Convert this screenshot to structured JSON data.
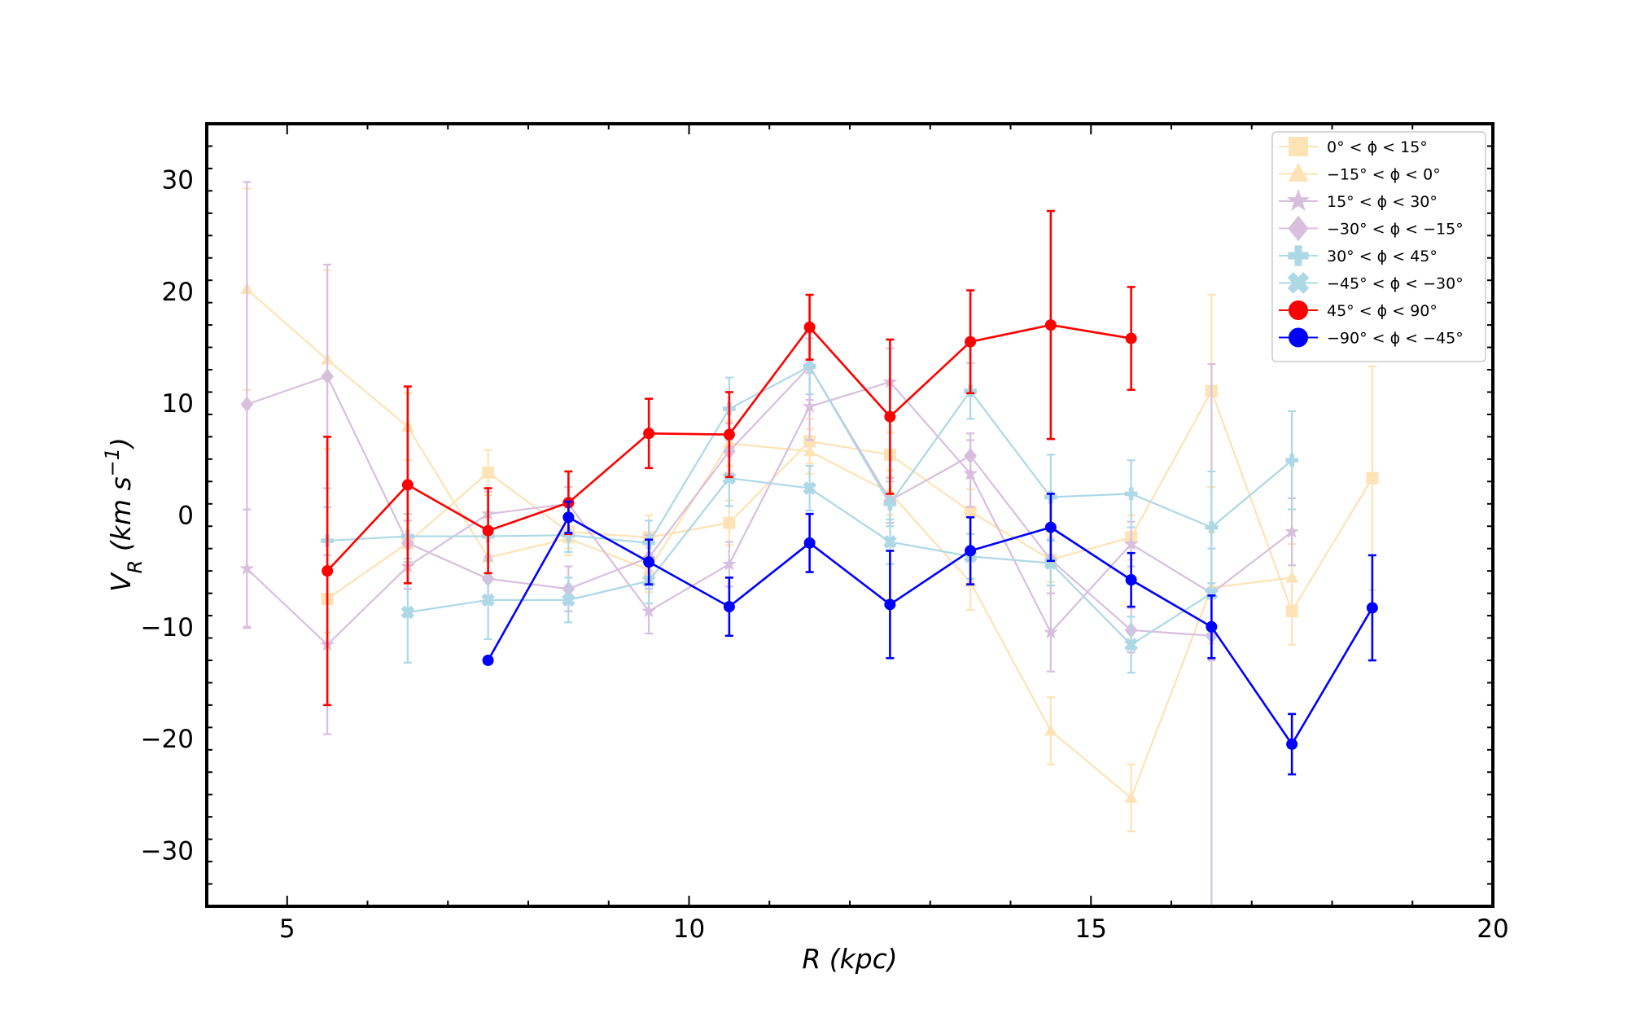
{
  "chart_data": {
    "type": "line",
    "xlabel": "R (kpc)",
    "ylabel": "V_R (km s^-1)",
    "xlim": [
      4,
      20
    ],
    "ylim": [
      -35,
      35
    ],
    "xticks": [
      5,
      10,
      15,
      20
    ],
    "xtick_labels": [
      "5",
      "10",
      "15",
      "20"
    ],
    "yticks": [
      -30,
      -20,
      -10,
      0,
      10,
      20,
      30
    ],
    "ytick_labels": [
      "−30",
      "−20",
      "−10",
      "0",
      "10",
      "20",
      "30"
    ],
    "legend_position": "top-right",
    "grid": false,
    "series": [
      {
        "name": "0° < ϕ < 15°",
        "color": "#FDE3B5",
        "marker": "square",
        "x": [
          5.5,
          6.5,
          7.5,
          8.5,
          9.5,
          10.5,
          11.5,
          12.5,
          13.5,
          14.5,
          15.5,
          16.5,
          17.5,
          18.5
        ],
        "y": [
          -7.5,
          -2.5,
          3.8,
          -1.5,
          -2.0,
          -0.7,
          6.6,
          5.4,
          0.3,
          -4.0,
          -2.0,
          11.1,
          -8.6,
          3.3
        ],
        "err": [
          3.0,
          2.0,
          2.0,
          1.5,
          2.0,
          2.0,
          2.0,
          2.0,
          2.0,
          2.0,
          2.0,
          8.6,
          3.0,
          10.0
        ]
      },
      {
        "name": "−15° < ϕ < 0°",
        "color": "#FDE3B5",
        "marker": "triangle",
        "x": [
          4.5,
          5.5,
          6.5,
          7.5,
          8.5,
          9.5,
          10.5,
          11.5,
          12.5,
          13.5,
          14.5,
          15.5,
          16.5,
          17.5
        ],
        "y": [
          20.2,
          13.9,
          7.9,
          -3.8,
          -2.1,
          -4.9,
          6.4,
          5.7,
          2.0,
          -6.0,
          -19.3,
          -25.3,
          -6.5,
          -5.6
        ],
        "err": [
          9.0,
          8.0,
          3.0,
          2.0,
          1.5,
          2.0,
          2.0,
          2.0,
          2.0,
          2.5,
          3.0,
          3.0,
          5.0,
          3.0
        ]
      },
      {
        "name": "15° < ϕ < 30°",
        "color": "#D8BFDE",
        "marker": "star",
        "x": [
          4.5,
          5.5,
          6.5,
          7.5,
          8.5,
          9.5,
          10.5,
          11.5,
          12.5,
          13.5,
          14.5,
          15.5,
          16.5,
          17.5
        ],
        "y": [
          -4.8,
          -11.6,
          -4.6,
          0.1,
          1.0,
          -8.6,
          -4.4,
          9.7,
          11.9,
          3.7,
          -10.5,
          -2.6,
          -7.0,
          -1.5
        ],
        "err": [
          5.3,
          8.0,
          2.0,
          2.0,
          1.5,
          2.0,
          2.0,
          3.0,
          3.0,
          3.0,
          3.5,
          2.0,
          6.0,
          3.0
        ]
      },
      {
        "name": "−30° < ϕ < −15°",
        "color": "#D8BFDE",
        "marker": "diamond",
        "x": [
          4.5,
          5.5,
          6.5,
          7.5,
          8.5,
          9.5,
          10.5,
          11.5,
          12.5,
          13.5,
          14.5,
          15.5,
          16.5
        ],
        "y": [
          9.9,
          12.4,
          -2.5,
          -5.7,
          -6.6,
          -3.8,
          5.7,
          13.3,
          1.3,
          5.3,
          -4.0,
          -10.3,
          -10.8
        ],
        "err": [
          19.9,
          10.0,
          2.0,
          2.0,
          2.0,
          2.0,
          2.5,
          3.0,
          2.0,
          2.0,
          3.0,
          2.0,
          24.3
        ]
      },
      {
        "name": "30° < ϕ < 45°",
        "color": "#ADD8E6",
        "marker": "plus",
        "x": [
          5.5,
          6.5,
          7.5,
          8.5,
          9.5,
          10.5,
          11.5,
          12.5,
          13.5,
          14.5,
          15.5,
          16.5,
          17.5
        ],
        "y": [
          -2.3,
          -1.9,
          -1.9,
          -1.8,
          -2.5,
          9.5,
          13.3,
          1.0,
          11.1,
          1.6,
          1.9,
          -1.1,
          4.9
        ],
        "err": [
          3.0,
          2.0,
          2.0,
          1.5,
          2.0,
          2.8,
          2.5,
          2.0,
          2.5,
          3.8,
          3.0,
          5.0,
          4.4
        ]
      },
      {
        "name": "−45° < ϕ < −30°",
        "color": "#ADD8E6",
        "marker": "x",
        "x": [
          6.5,
          7.5,
          8.5,
          9.5,
          10.5,
          11.5,
          12.5,
          13.5,
          14.5,
          15.5,
          16.5
        ],
        "y": [
          -8.7,
          -7.6,
          -7.6,
          -5.9,
          3.3,
          2.4,
          -2.4,
          -3.7,
          -4.3,
          -11.6,
          -7.0
        ],
        "err": [
          4.5,
          3.5,
          2.0,
          2.0,
          2.5,
          2.0,
          2.0,
          2.0,
          2.0,
          2.5,
          4.0
        ]
      },
      {
        "name": "45° < ϕ < 90°",
        "color": "#FF0000",
        "marker": "circle",
        "x": [
          5.5,
          6.5,
          7.5,
          8.5,
          9.5,
          10.5,
          11.5,
          12.5,
          13.5,
          14.5,
          15.5
        ],
        "y": [
          -5.0,
          2.7,
          -1.4,
          1.1,
          7.3,
          7.2,
          16.8,
          8.8,
          15.5,
          17.0,
          15.8
        ],
        "err": [
          12.0,
          8.8,
          3.8,
          2.8,
          3.1,
          3.8,
          2.9,
          6.9,
          4.6,
          10.2,
          4.6
        ]
      },
      {
        "name": "−90° < ϕ < −45°",
        "color": "#0000FF",
        "marker": "circle",
        "x": [
          7.5,
          8.5,
          9.5,
          10.5,
          11.5,
          12.5,
          13.5,
          14.5,
          15.5,
          16.5,
          17.5,
          18.5
        ],
        "y": [
          -13.0,
          -0.2,
          -4.2,
          -8.2,
          -2.5,
          -8.0,
          -3.2,
          -1.1,
          -5.8,
          -10.0,
          -20.5,
          -8.3
        ],
        "err": [
          0.0,
          1.4,
          2.0,
          2.6,
          2.6,
          4.8,
          3.0,
          3.0,
          2.4,
          2.8,
          2.7,
          4.7
        ]
      }
    ]
  }
}
